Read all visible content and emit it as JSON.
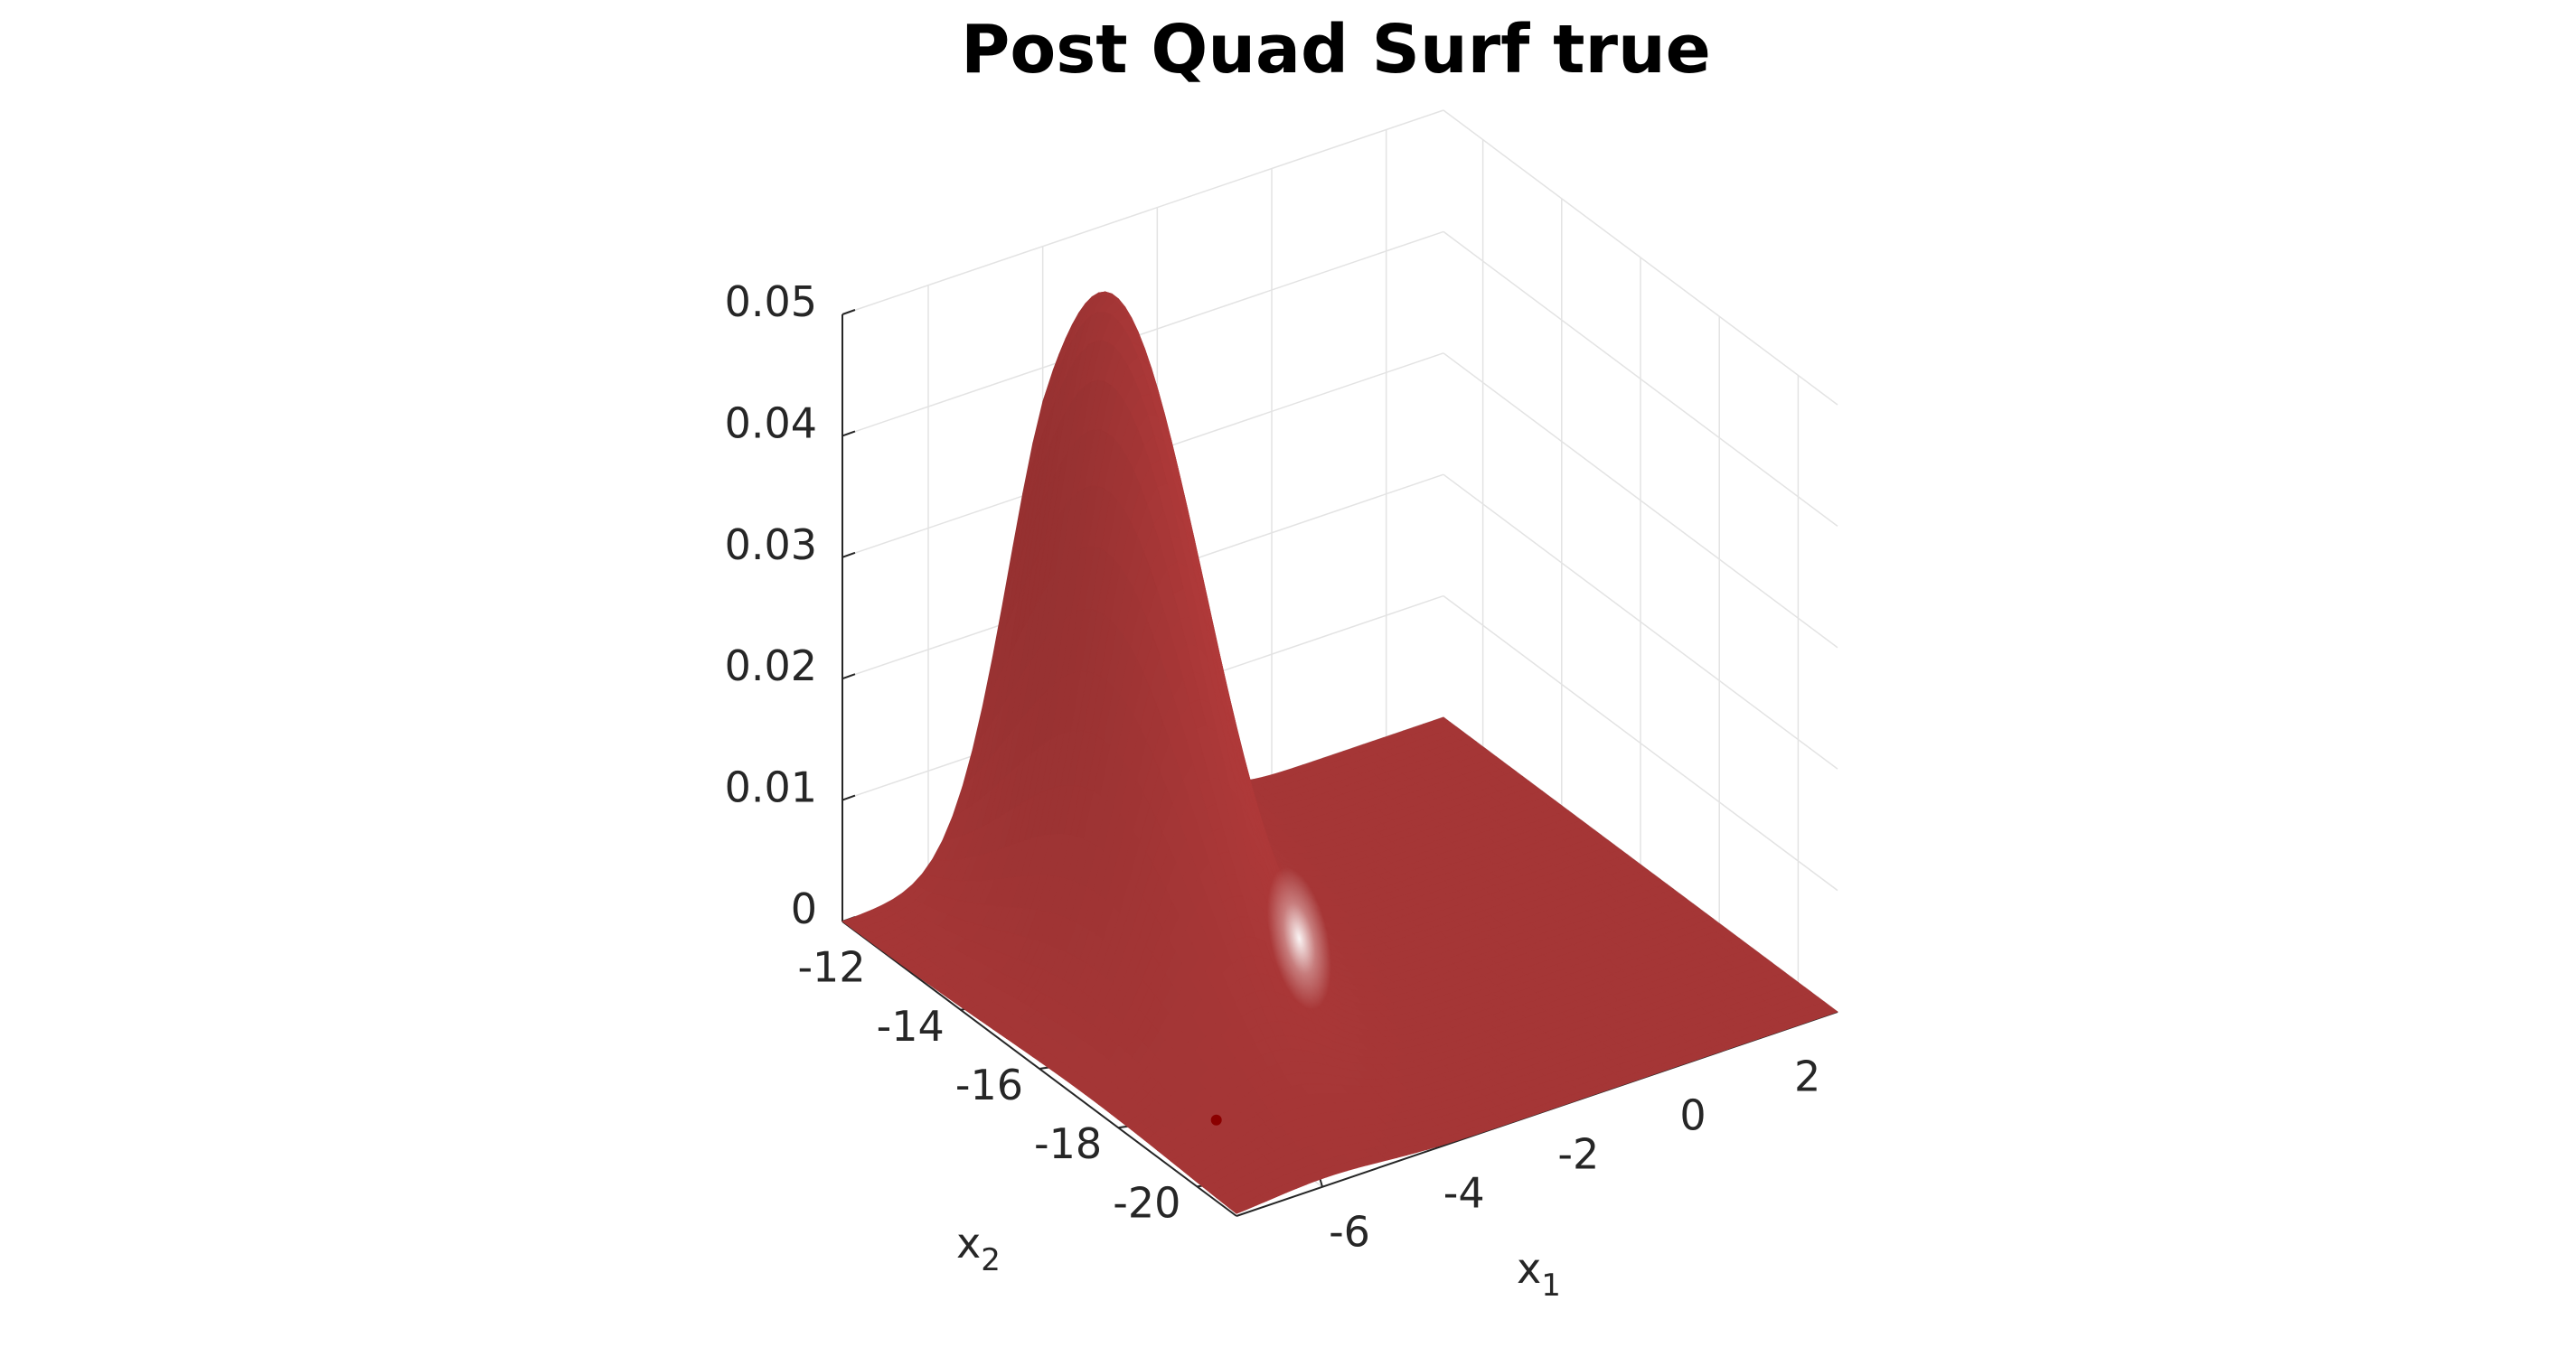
{
  "chart_data": {
    "type": "surface",
    "title": "Post Quad Surf true",
    "xlabel": "x",
    "xlabel_sub": "1",
    "ylabel": "x",
    "ylabel_sub": "2",
    "zlabel": "",
    "xlim": [
      -7.5,
      3
    ],
    "ylim": [
      -21,
      -11
    ],
    "zlim": [
      0,
      0.05
    ],
    "x_ticks": [
      -6,
      -4,
      -2,
      0,
      2
    ],
    "x_tick_labels": [
      "-6",
      "-4",
      "-2",
      "0",
      "2"
    ],
    "y_ticks": [
      -12,
      -14,
      -16,
      -18,
      -20
    ],
    "y_tick_labels": [
      "-12",
      "-14",
      "-16",
      "-18",
      "-20"
    ],
    "z_ticks": [
      0,
      0.01,
      0.02,
      0.03,
      0.04,
      0.05
    ],
    "z_tick_labels": [
      "0",
      "0.01",
      "0.02",
      "0.03",
      "0.04",
      "0.05"
    ],
    "surface": {
      "description_source": "bivariate density peak",
      "peak_x": -4.0,
      "peak_y": -12.8,
      "peak_z": 0.05,
      "spread_x": 1.2,
      "spread_y": 2.8,
      "correlation": 0.55
    },
    "marker": {
      "x": -6.2,
      "y": -18.6,
      "z": 0
    },
    "grid": true,
    "colors": {
      "surface": "#e24a4a",
      "surface_dark": "#7a1010",
      "grid": "#e3e3e3",
      "axis": "#262626",
      "marker": "#8b0000"
    }
  }
}
